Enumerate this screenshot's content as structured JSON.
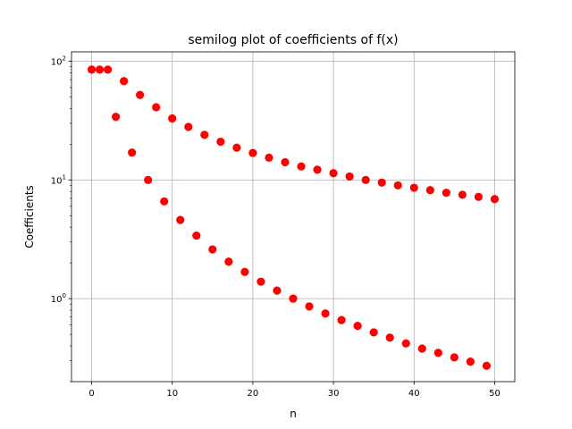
{
  "chart_data": {
    "type": "scatter",
    "title": "semilog plot of coefficients of f(x)",
    "xlabel": "n",
    "ylabel": "Coefficients",
    "yscale": "log",
    "xlim": [
      -2.5,
      52.5
    ],
    "ylim": [
      0.2,
      120
    ],
    "grid": true,
    "x_ticks": [
      0,
      10,
      20,
      30,
      40,
      50
    ],
    "y_ticks": [
      {
        "value": 1,
        "base": "10",
        "exp": "0"
      },
      {
        "value": 10,
        "base": "10",
        "exp": "1"
      },
      {
        "value": 100,
        "base": "10",
        "exp": "2"
      }
    ],
    "marker_color": "#ff0000",
    "x": [
      0,
      1,
      2,
      3,
      4,
      5,
      6,
      7,
      8,
      9,
      10,
      11,
      12,
      13,
      14,
      15,
      16,
      17,
      18,
      19,
      20,
      21,
      22,
      23,
      24,
      25,
      26,
      27,
      28,
      29,
      30,
      31,
      32,
      33,
      34,
      35,
      36,
      37,
      38,
      39,
      40,
      41,
      42,
      43,
      44,
      45,
      46,
      47,
      48,
      49,
      50
    ],
    "y": [
      85,
      85,
      85,
      34,
      68,
      17,
      52,
      10,
      41,
      6.6,
      33,
      4.6,
      28,
      3.4,
      24,
      2.6,
      21,
      2.05,
      18.7,
      1.68,
      16.9,
      1.39,
      15.4,
      1.17,
      14.1,
      1.0,
      13.0,
      0.86,
      12.2,
      0.75,
      11.4,
      0.66,
      10.7,
      0.59,
      10.0,
      0.52,
      9.5,
      0.47,
      9.0,
      0.42,
      8.6,
      0.38,
      8.2,
      0.35,
      7.8,
      0.32,
      7.5,
      0.295,
      7.2,
      0.272,
      6.9
    ]
  }
}
